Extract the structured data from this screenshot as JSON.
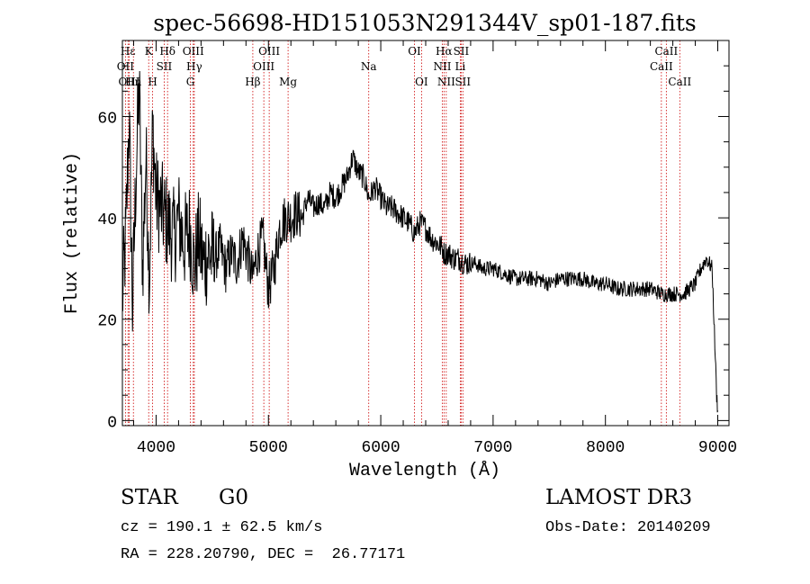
{
  "chart_data": {
    "type": "line",
    "title": "spec-56698-HD151053N291344V_sp01-187.fits",
    "xlabel": "Wavelength (Å)",
    "ylabel": "Flux (relative)",
    "xlim": [
      3700,
      9100
    ],
    "ylim": [
      -1,
      75
    ],
    "x_ticks": [
      4000,
      5000,
      6000,
      7000,
      8000,
      9000
    ],
    "y_ticks": [
      0,
      20,
      40,
      60
    ],
    "line_color": "#000000",
    "marker_color": "#cc0000",
    "series": [
      {
        "name": "flux",
        "x": [
          3700,
          3730,
          3760,
          3790,
          3820,
          3850,
          3880,
          3910,
          3940,
          3970,
          4000,
          4040,
          4080,
          4120,
          4160,
          4200,
          4250,
          4300,
          4340,
          4380,
          4420,
          4470,
          4520,
          4570,
          4620,
          4670,
          4720,
          4770,
          4820,
          4861,
          4900,
          4950,
          5000,
          5050,
          5100,
          5150,
          5200,
          5250,
          5300,
          5350,
          5400,
          5450,
          5500,
          5550,
          5600,
          5650,
          5700,
          5750,
          5800,
          5850,
          5893,
          5950,
          6000,
          6050,
          6100,
          6150,
          6200,
          6250,
          6300,
          6350,
          6400,
          6450,
          6500,
          6550,
          6563,
          6600,
          6650,
          6700,
          6750,
          6800,
          6850,
          6900,
          6950,
          7000,
          7100,
          7200,
          7300,
          7400,
          7500,
          7600,
          7700,
          7800,
          7900,
          8000,
          8100,
          8200,
          8300,
          8400,
          8500,
          8600,
          8700,
          8800,
          8850,
          8900,
          8950,
          8990,
          9000
        ],
        "y": [
          24,
          36,
          60,
          22,
          48,
          66,
          30,
          52,
          28,
          58,
          44,
          42,
          40,
          38,
          36,
          40,
          35,
          38,
          30,
          36,
          31,
          33,
          32,
          34,
          30,
          33,
          31,
          36,
          32,
          28,
          33,
          36,
          26,
          30,
          38,
          40,
          40,
          41,
          40,
          44,
          42,
          43,
          42,
          45,
          44,
          46,
          48,
          52,
          49,
          48,
          44,
          46,
          44,
          42,
          42,
          41,
          40,
          39,
          37,
          39,
          38,
          36,
          35,
          34,
          33,
          33,
          32,
          32,
          31,
          31,
          31,
          30,
          30,
          30,
          29,
          28,
          28,
          28,
          27,
          28,
          28,
          28,
          27,
          27,
          26,
          26,
          26,
          26,
          25,
          25,
          25,
          27,
          30,
          32,
          30,
          5,
          2
        ]
      }
    ],
    "spectral_lines": [
      {
        "name": "OII",
        "wavelength": 3727,
        "row": 2
      },
      {
        "name": "Hε",
        "wavelength": 3750,
        "row": 1
      },
      {
        "name": "OIII",
        "wavelength": 3760,
        "row": 3
      },
      {
        "name": "Hn",
        "wavelength": 3798,
        "row": 3
      },
      {
        "name": "K",
        "wavelength": 3934,
        "row": 1
      },
      {
        "name": "H",
        "wavelength": 3969,
        "row": 3
      },
      {
        "name": "SII",
        "wavelength": 4072,
        "row": 2
      },
      {
        "name": "Hδ",
        "wavelength": 4102,
        "row": 1
      },
      {
        "name": "OIII",
        "wavelength": 4331,
        "row": 1
      },
      {
        "name": "Hγ",
        "wavelength": 4340,
        "row": 2
      },
      {
        "name": "G",
        "wavelength": 4305,
        "row": 3
      },
      {
        "name": "Hβ",
        "wavelength": 4861,
        "row": 3
      },
      {
        "name": "OIII",
        "wavelength": 5007,
        "row": 1
      },
      {
        "name": "OIII",
        "wavelength": 4959,
        "row": 2
      },
      {
        "name": "Mg",
        "wavelength": 5175,
        "row": 3
      },
      {
        "name": "Na",
        "wavelength": 5893,
        "row": 2
      },
      {
        "name": "OI",
        "wavelength": 6300,
        "row": 1
      },
      {
        "name": "OI",
        "wavelength": 6363,
        "row": 3
      },
      {
        "name": "Hα",
        "wavelength": 6563,
        "row": 1
      },
      {
        "name": "NII",
        "wavelength": 6548,
        "row": 2
      },
      {
        "name": "NII",
        "wavelength": 6583,
        "row": 3
      },
      {
        "name": "SII",
        "wavelength": 6716,
        "row": 1
      },
      {
        "name": "Li",
        "wavelength": 6708,
        "row": 2
      },
      {
        "name": "SII",
        "wavelength": 6731,
        "row": 3
      },
      {
        "name": "CaII",
        "wavelength": 8542,
        "row": 1
      },
      {
        "name": "CaII",
        "wavelength": 8498,
        "row": 2
      },
      {
        "name": "CaII",
        "wavelength": 8662,
        "row": 3
      }
    ]
  },
  "info": {
    "object_class": "STAR",
    "subclass": "G0",
    "survey": "LAMOST DR3",
    "redshift": "cz = 190.1 ± 62.5 km/s",
    "obs_date": "Obs-Date: 20140209",
    "coords": "RA = 228.20790, DEC =  26.77171"
  }
}
